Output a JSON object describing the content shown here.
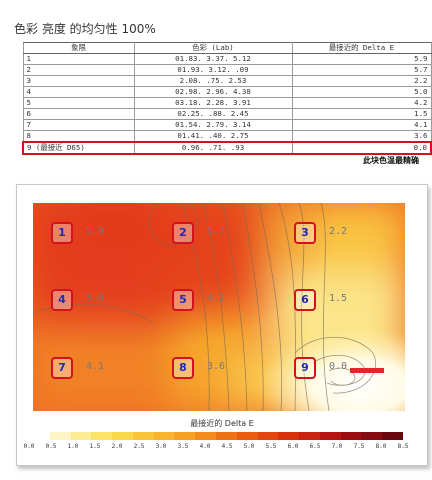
{
  "title": "色彩 亮度 的均匀性 100%",
  "table": {
    "headers": [
      "象限",
      "色彩 (Lab)",
      "最接近的 Delta E"
    ],
    "rows": [
      {
        "label": "1",
        "lab": "01.83.   3.37.   5.12",
        "de": "5.9"
      },
      {
        "label": "2",
        "lab": "01.93.   3.12.    .09",
        "de": "5.7"
      },
      {
        "label": "3",
        "lab": "2.08.     .75.   2.53",
        "de": "2.2"
      },
      {
        "label": "4",
        "lab": "02.98.   2.96.   4.38",
        "de": "5.0"
      },
      {
        "label": "5",
        "lab": "03.18.   2.28.   3.91",
        "de": "4.2"
      },
      {
        "label": "6",
        "lab": "02.25.    .88.   2.45",
        "de": "1.5"
      },
      {
        "label": "7",
        "lab": "01.54.   2.79.   3.14",
        "de": "4.1"
      },
      {
        "label": "8",
        "lab": "01.41.    .40.   2.75",
        "de": "3.6"
      },
      {
        "label": "9 (最接近 D65)",
        "lab": "0.96.    .71.    .93",
        "de": "0.0"
      }
    ]
  },
  "note": "此块色温最精确",
  "zones": [
    {
      "id": "1",
      "value": "5.9"
    },
    {
      "id": "2",
      "value": "5.7"
    },
    {
      "id": "3",
      "value": "2.2"
    },
    {
      "id": "4",
      "value": "5.0"
    },
    {
      "id": "5",
      "value": "4.2"
    },
    {
      "id": "6",
      "value": "1.5"
    },
    {
      "id": "7",
      "value": "4.1"
    },
    {
      "id": "8",
      "value": "3.6"
    },
    {
      "id": "9",
      "value": "0.0"
    }
  ],
  "scale": {
    "title": "最接近的 Delta E",
    "ticks": [
      "0.0",
      "0.5",
      "1.0",
      "1.5",
      "2.0",
      "2.5",
      "3.0",
      "3.5",
      "4.0",
      "4.5",
      "5.0",
      "5.5",
      "6.0",
      "6.5",
      "7.0",
      "7.5",
      "8.0",
      "8.5"
    ],
    "colors": [
      "#ffffff",
      "#fdf6c4",
      "#fcec94",
      "#fbe269",
      "#fbd74a",
      "#f9c63a",
      "#f8b42e",
      "#f6a024",
      "#f38b1c",
      "#ef7315",
      "#ea5c10",
      "#e2460d",
      "#d8320d",
      "#c9220f",
      "#b51511",
      "#9e0d12",
      "#850a12",
      "#6a0810"
    ],
    "accent": "#d4121f"
  }
}
